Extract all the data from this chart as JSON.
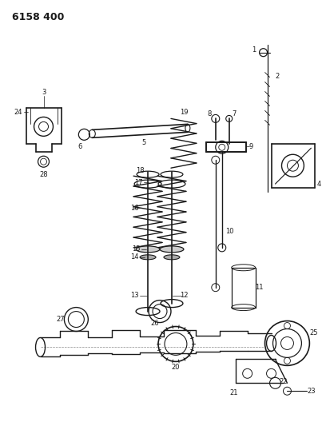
{
  "title": "6158 400",
  "bg_color": "#ffffff",
  "line_color": "#1a1a1a",
  "fig_width": 4.08,
  "fig_height": 5.33,
  "dpi": 100,
  "image_path": null
}
